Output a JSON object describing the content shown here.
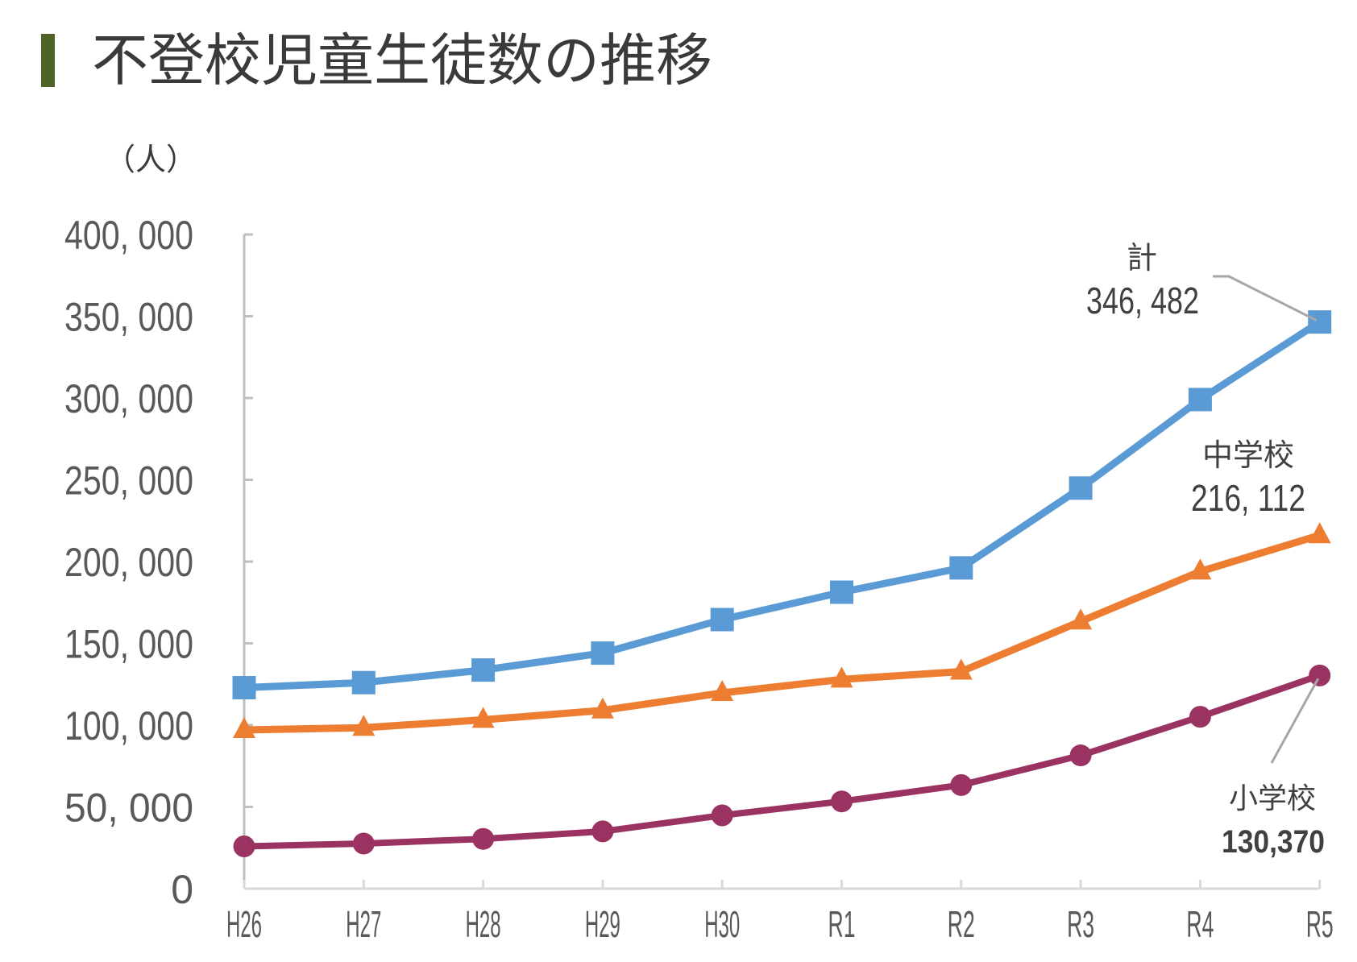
{
  "title": "不登校児童生徒数の推移",
  "colors": {
    "title_bar": "#4f6228",
    "total": "#5b9bd5",
    "junior_high": "#ed7d31",
    "elementary": "#9a3362",
    "axis": "#bfbfbf",
    "text": "#595959"
  },
  "chart_data": {
    "type": "line",
    "title": "不登校児童生徒数の推移",
    "ylabel": "（人）",
    "xlabel": "",
    "ylim": [
      0,
      400000
    ],
    "yticks": [
      0,
      50000,
      100000,
      150000,
      200000,
      250000,
      300000,
      350000,
      400000
    ],
    "ytick_labels": [
      "0",
      "50, 000",
      "100, 000",
      "150, 000",
      "200, 000",
      "250, 000",
      "300, 000",
      "350, 000",
      "400, 000"
    ],
    "categories": [
      "H26",
      "H27",
      "H28",
      "H29",
      "H30",
      "R1",
      "R2",
      "R3",
      "R4",
      "R5"
    ],
    "grid": false,
    "legend": "none (direct labels at right end)",
    "series": [
      {
        "name": "計",
        "key": "total",
        "marker": "square",
        "values": [
          122897,
          125991,
          133683,
          144031,
          164528,
          181272,
          196127,
          244940,
          299048,
          346482
        ],
        "label_name": "計",
        "label_value": "346, 482"
      },
      {
        "name": "中学校",
        "key": "junior_high",
        "marker": "triangle",
        "values": [
          97033,
          98408,
          103235,
          108999,
          119687,
          127922,
          132777,
          163442,
          193936,
          216112
        ],
        "label_name": "中学校",
        "label_value": "216, 112"
      },
      {
        "name": "小学校",
        "key": "elementary",
        "marker": "circle",
        "values": [
          25864,
          27583,
          30448,
          35032,
          44841,
          53350,
          63350,
          81498,
          105112,
          130370
        ],
        "label_name": "小学校",
        "label_value": "130,370"
      }
    ]
  }
}
